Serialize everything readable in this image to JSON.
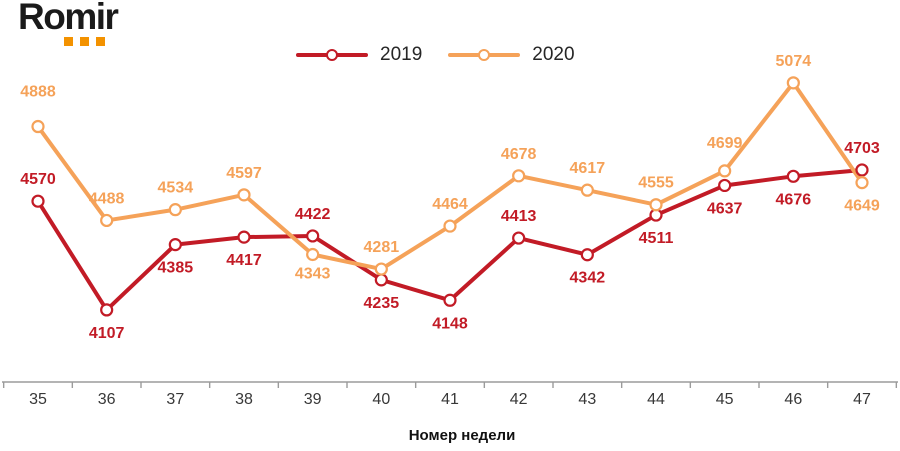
{
  "logo": {
    "text": "Romir",
    "dot_color": "#f39200"
  },
  "legend": {
    "items": [
      {
        "label": "2019",
        "color": "#c21b26"
      },
      {
        "label": "2020",
        "color": "#f5a259"
      }
    ]
  },
  "chart_data": {
    "type": "line",
    "categories": [
      "35",
      "36",
      "37",
      "38",
      "39",
      "40",
      "41",
      "42",
      "43",
      "44",
      "45",
      "46",
      "47"
    ],
    "xlabel": "Номер недели",
    "ylabel": "",
    "ylim": [
      3800,
      5150
    ],
    "grid": false,
    "legend_position": "top-center",
    "marker": "open-circle",
    "axis_color": "#9b9b9b",
    "tick_label_color": "#383838",
    "series": [
      {
        "name": "2019",
        "color": "#c21b26",
        "values": [
          4570,
          4107,
          4385,
          4417,
          4422,
          4235,
          4148,
          4413,
          4342,
          4511,
          4637,
          4676,
          4703
        ],
        "label_sides": [
          "above",
          "below",
          "below",
          "below",
          "above",
          "below",
          "below",
          "above",
          "below",
          "below",
          "below",
          "below",
          "above"
        ],
        "label_dy": [
          0,
          0,
          0,
          0,
          0,
          0,
          0,
          0,
          0,
          0,
          0,
          0,
          0
        ]
      },
      {
        "name": "2020",
        "color": "#f5a259",
        "values": [
          4888,
          4488,
          4534,
          4597,
          4343,
          4281,
          4464,
          4678,
          4617,
          4555,
          4699,
          5074,
          4649
        ],
        "label_sides": [
          "above",
          "above",
          "above",
          "above",
          "below",
          "above",
          "above",
          "above",
          "above",
          "above",
          "above",
          "above",
          "below"
        ],
        "label_dy": [
          -13,
          0,
          0,
          0,
          -4,
          0,
          0,
          0,
          0,
          0,
          -6,
          0,
          0
        ]
      }
    ]
  }
}
